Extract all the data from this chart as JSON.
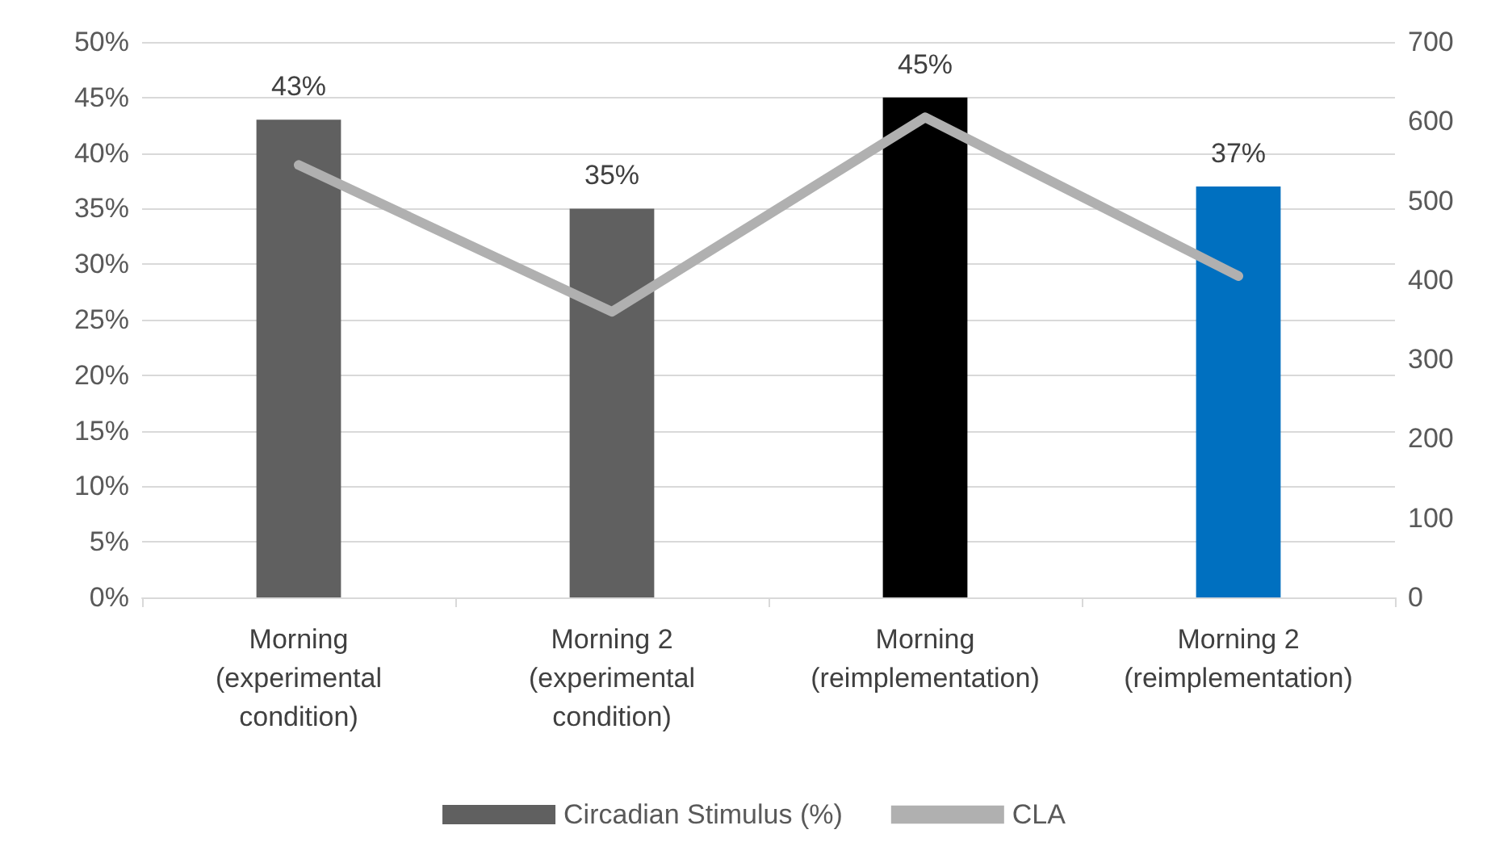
{
  "chart_data": {
    "type": "bar",
    "categories": [
      "Morning\n(experimental\ncondition)",
      "Morning 2\n(experimental\ncondition)",
      "Morning\n(reimplementation)",
      "Morning 2\n(reimplementation)"
    ],
    "series": [
      {
        "name": "Circadian Stimulus (%)",
        "color": "#606060",
        "colors": [
          "#606060",
          "#606060",
          "#000000",
          "#0070c0"
        ],
        "values": [
          43,
          35,
          45,
          37
        ],
        "value_labels": [
          "43%",
          "35%",
          "45%",
          "37%"
        ]
      },
      {
        "name": "CLA",
        "type": "line",
        "axis": "y2",
        "color": "#b0b0b0",
        "values": [
          545,
          360,
          605,
          405
        ]
      }
    ],
    "ylim": [
      0,
      50
    ],
    "yticks": [
      {
        "value": 0,
        "label": "0%"
      },
      {
        "value": 5,
        "label": "5%"
      },
      {
        "value": 10,
        "label": "10%"
      },
      {
        "value": 15,
        "label": "15%"
      },
      {
        "value": 20,
        "label": "20%"
      },
      {
        "value": 25,
        "label": "25%"
      },
      {
        "value": 30,
        "label": "30%"
      },
      {
        "value": 35,
        "label": "35%"
      },
      {
        "value": 40,
        "label": "40%"
      },
      {
        "value": 45,
        "label": "45%"
      },
      {
        "value": 50,
        "label": "50%"
      }
    ],
    "y2lim": [
      0,
      700
    ],
    "y2ticks": [
      0,
      100,
      200,
      300,
      400,
      500,
      600,
      700
    ],
    "grid": "y",
    "legend": "bottom",
    "marker": "none"
  }
}
